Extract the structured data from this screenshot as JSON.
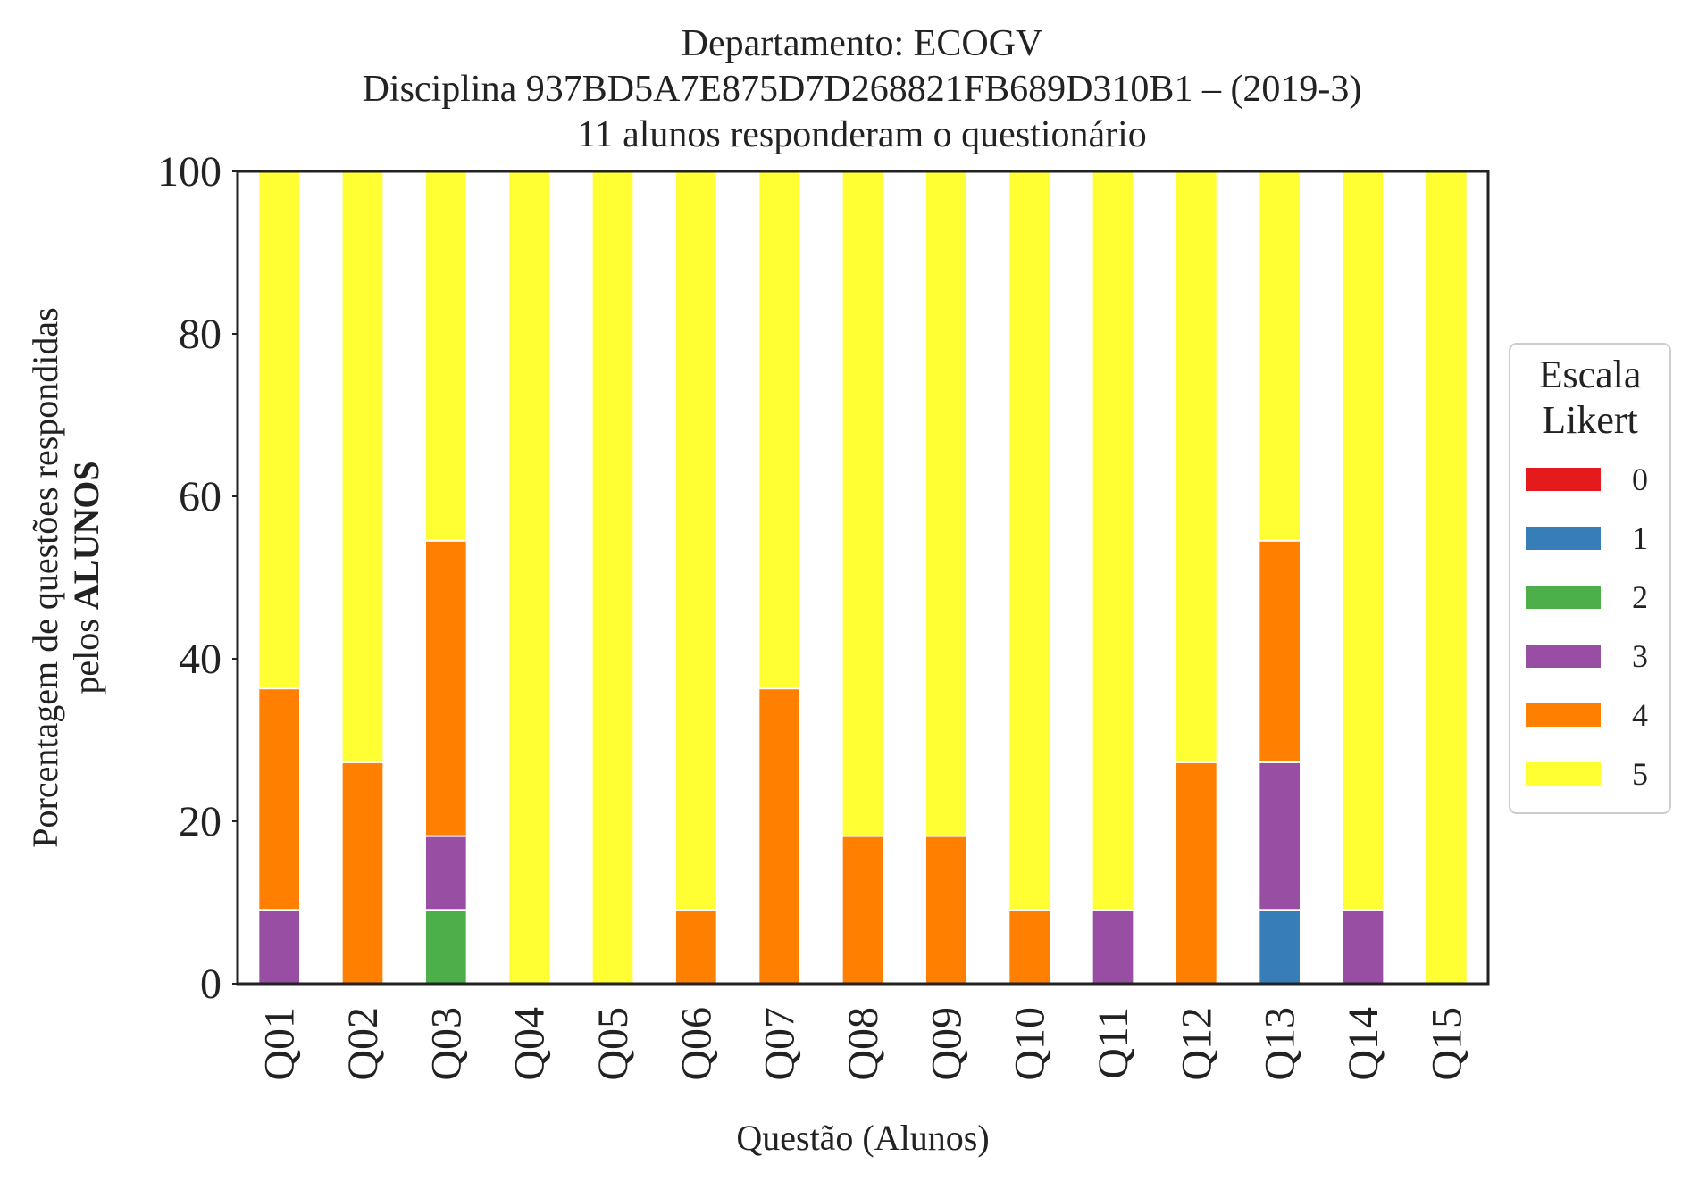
{
  "chart_data": {
    "type": "bar",
    "stacked": true,
    "title_lines": [
      "Departamento: ECOGV",
      "Disciplina 937BD5A7E875D7D268821FB689D310B1 – (2019-3)",
      "11 alunos responderam o questionário"
    ],
    "xlabel": "Questão (Alunos)",
    "ylabel_line1": "Porcentagem de questões respondidas",
    "ylabel_line2_prefix": "pelos ",
    "ylabel_line2_bold": "ALUNOS",
    "ylim": [
      0,
      100
    ],
    "yticks": [
      0,
      20,
      40,
      60,
      80,
      100
    ],
    "grid": false,
    "legend": {
      "title_lines": [
        "Escala",
        "Likert"
      ],
      "placement": "right-center"
    },
    "categories": [
      "Q01",
      "Q02",
      "Q03",
      "Q04",
      "Q05",
      "Q06",
      "Q07",
      "Q08",
      "Q09",
      "Q10",
      "Q11",
      "Q12",
      "Q13",
      "Q14",
      "Q15"
    ],
    "series": [
      {
        "name": "0",
        "color": "#e41a1c",
        "values": [
          0,
          0,
          0,
          0,
          0,
          0,
          0,
          0,
          0,
          0,
          0,
          0,
          0,
          0,
          0
        ]
      },
      {
        "name": "1",
        "color": "#377eb8",
        "values": [
          0,
          0,
          0,
          0,
          0,
          0,
          0,
          0,
          0,
          0,
          0,
          0,
          9.09,
          0,
          0
        ]
      },
      {
        "name": "2",
        "color": "#4daf4a",
        "values": [
          0,
          0,
          9.09,
          0,
          0,
          0,
          0,
          0,
          0,
          0,
          0,
          0,
          0,
          0,
          0
        ]
      },
      {
        "name": "3",
        "color": "#984ea3",
        "values": [
          9.09,
          0,
          9.09,
          0,
          0,
          0,
          0,
          0,
          0,
          0,
          9.09,
          0,
          18.18,
          9.09,
          0
        ]
      },
      {
        "name": "4",
        "color": "#ff7f00",
        "values": [
          27.27,
          27.27,
          36.36,
          0,
          0,
          9.09,
          36.36,
          18.18,
          18.18,
          9.09,
          0,
          27.27,
          27.27,
          0,
          0
        ]
      },
      {
        "name": "5",
        "color": "#ffff33",
        "values": [
          63.64,
          72.73,
          45.45,
          100,
          100,
          90.91,
          63.64,
          81.82,
          81.82,
          90.91,
          90.91,
          72.73,
          45.45,
          90.91,
          100
        ]
      }
    ]
  }
}
